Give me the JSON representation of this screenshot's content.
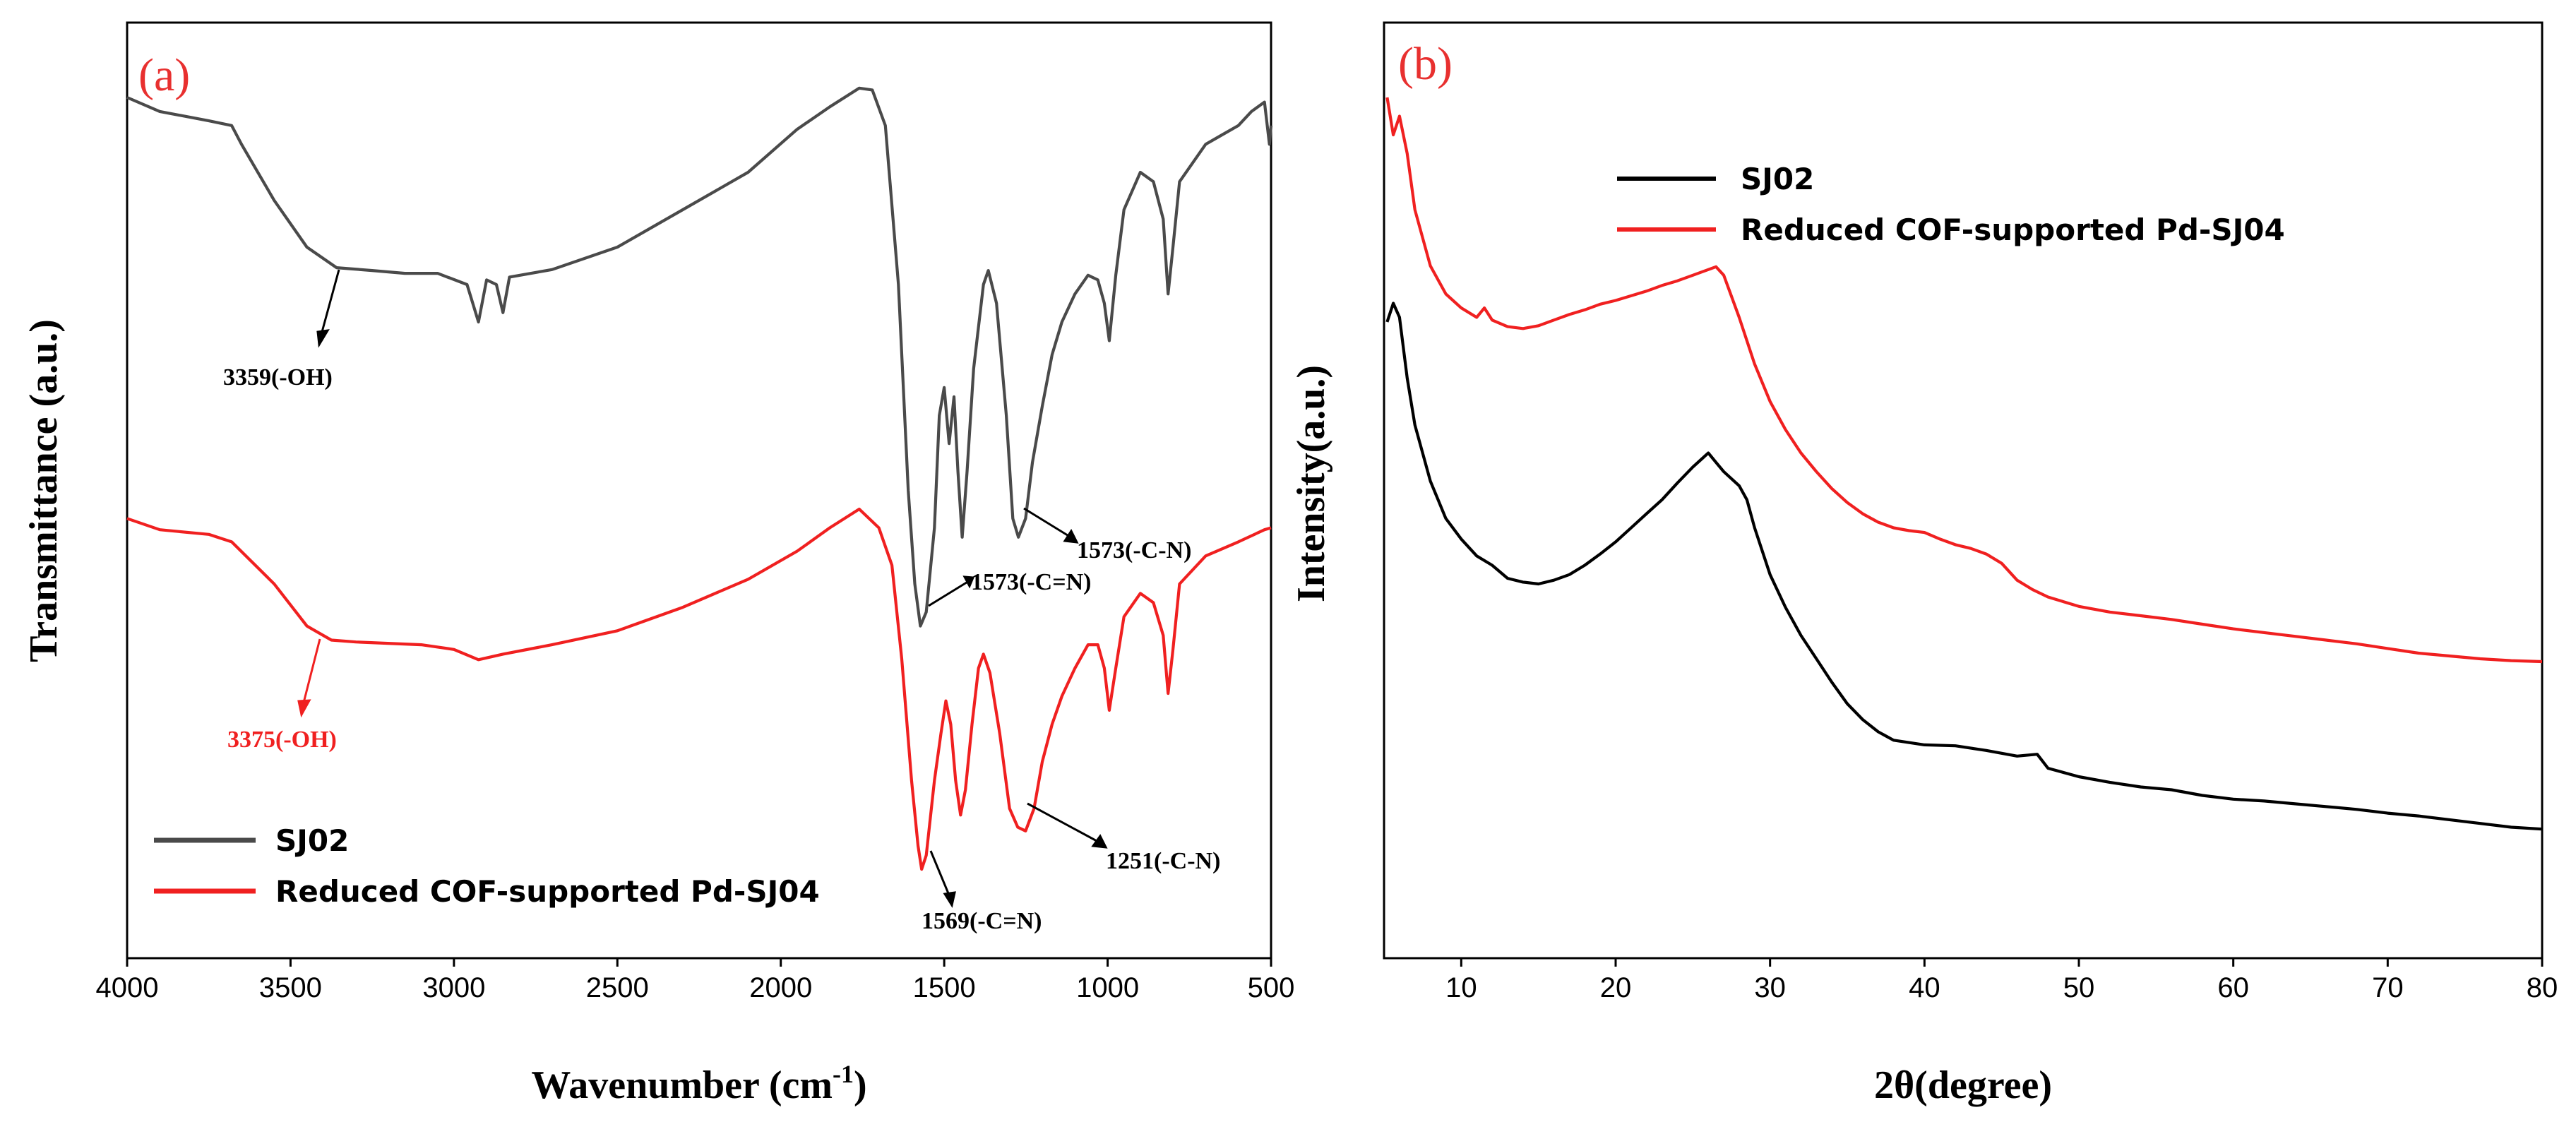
{
  "colors": {
    "sj02_a": "#4a4a4a",
    "sj04": "#f02020",
    "sj02_b": "#000000",
    "panel_tag": "#e8302f"
  },
  "chart_data": [
    {
      "type": "line",
      "panel": "(a)",
      "xlabel": "Wavenumber (cm",
      "xlabel_sup": "-1",
      "xlabel_end": ")",
      "ylabel": "Transmittance (a.u.)",
      "xlim": [
        4000,
        500
      ],
      "xticks": [
        "4000",
        "3500",
        "3000",
        "2500",
        "2000",
        "1500",
        "1000",
        "500"
      ],
      "tick_values": [
        4000,
        3500,
        3000,
        2500,
        2000,
        1500,
        1000,
        500
      ],
      "legend": [
        {
          "name": "SJ02",
          "color": "#4a4a4a"
        },
        {
          "name": "Reduced COF-supported Pd-SJ04",
          "color": "#f02020"
        }
      ],
      "series": [
        {
          "name": "SJ02",
          "color": "#4a4a4a",
          "points": [
            [
              4000,
              92
            ],
            [
              3900,
              90.5
            ],
            [
              3750,
              89.5
            ],
            [
              3680,
              89
            ],
            [
              3650,
              87
            ],
            [
              3550,
              81
            ],
            [
              3450,
              76
            ],
            [
              3359,
              73.8
            ],
            [
              3250,
              73.5
            ],
            [
              3150,
              73.2
            ],
            [
              3050,
              73.2
            ],
            [
              2960,
              72
            ],
            [
              2925,
              68
            ],
            [
              2900,
              72.5
            ],
            [
              2870,
              72
            ],
            [
              2850,
              69
            ],
            [
              2830,
              72.8
            ],
            [
              2700,
              73.6
            ],
            [
              2500,
              76
            ],
            [
              2300,
              80
            ],
            [
              2100,
              84
            ],
            [
              1950,
              88.6
            ],
            [
              1850,
              91
            ],
            [
              1760,
              93
            ],
            [
              1720,
              92.8
            ],
            [
              1680,
              89
            ],
            [
              1640,
              72
            ],
            [
              1610,
              50
            ],
            [
              1590,
              40
            ],
            [
              1573,
              35.5
            ],
            [
              1555,
              37
            ],
            [
              1530,
              46
            ],
            [
              1515,
              58
            ],
            [
              1500,
              61
            ],
            [
              1485,
              55
            ],
            [
              1470,
              60
            ],
            [
              1458,
              52
            ],
            [
              1445,
              45
            ],
            [
              1430,
              52
            ],
            [
              1410,
              63
            ],
            [
              1380,
              72
            ],
            [
              1365,
              73.5
            ],
            [
              1340,
              70
            ],
            [
              1310,
              58
            ],
            [
              1290,
              47
            ],
            [
              1273,
              45
            ],
            [
              1251,
              47
            ],
            [
              1230,
              53
            ],
            [
              1200,
              59
            ],
            [
              1170,
              64.5
            ],
            [
              1140,
              68
            ],
            [
              1100,
              71
            ],
            [
              1060,
              73
            ],
            [
              1030,
              72.5
            ],
            [
              1010,
              70
            ],
            [
              995,
              66
            ],
            [
              975,
              73
            ],
            [
              950,
              80
            ],
            [
              900,
              84
            ],
            [
              860,
              83
            ],
            [
              830,
              79
            ],
            [
              815,
              71
            ],
            [
              800,
              76
            ],
            [
              780,
              83
            ],
            [
              700,
              87
            ],
            [
              650,
              88
            ],
            [
              600,
              89
            ],
            [
              560,
              90.5
            ],
            [
              520,
              91.5
            ],
            [
              505,
              87
            ],
            [
              500,
              89
            ]
          ]
        },
        {
          "name": "Reduced COF-supported Pd-SJ04",
          "color": "#f02020",
          "points": [
            [
              4000,
              47
            ],
            [
              3900,
              45.8
            ],
            [
              3750,
              45.3
            ],
            [
              3680,
              44.5
            ],
            [
              3550,
              40
            ],
            [
              3450,
              35.5
            ],
            [
              3375,
              34
            ],
            [
              3300,
              33.8
            ],
            [
              3100,
              33.5
            ],
            [
              3000,
              33
            ],
            [
              2925,
              31.9
            ],
            [
              2850,
              32.5
            ],
            [
              2700,
              33.5
            ],
            [
              2500,
              35
            ],
            [
              2300,
              37.5
            ],
            [
              2100,
              40.5
            ],
            [
              1950,
              43.5
            ],
            [
              1850,
              46
            ],
            [
              1760,
              48
            ],
            [
              1700,
              46
            ],
            [
              1660,
              42
            ],
            [
              1630,
              32
            ],
            [
              1600,
              19
            ],
            [
              1580,
              12
            ],
            [
              1569,
              9.5
            ],
            [
              1555,
              11
            ],
            [
              1530,
              19
            ],
            [
              1510,
              24
            ],
            [
              1495,
              27.5
            ],
            [
              1480,
              25
            ],
            [
              1465,
              19
            ],
            [
              1450,
              15.3
            ],
            [
              1435,
              18
            ],
            [
              1415,
              25
            ],
            [
              1395,
              31
            ],
            [
              1380,
              32.5
            ],
            [
              1360,
              30.5
            ],
            [
              1330,
              24
            ],
            [
              1300,
              16
            ],
            [
              1275,
              14
            ],
            [
              1251,
              13.6
            ],
            [
              1225,
              16
            ],
            [
              1200,
              21
            ],
            [
              1170,
              25
            ],
            [
              1140,
              28
            ],
            [
              1100,
              31
            ],
            [
              1060,
              33.5
            ],
            [
              1030,
              33.5
            ],
            [
              1010,
              31
            ],
            [
              995,
              26.5
            ],
            [
              975,
              31
            ],
            [
              950,
              36.5
            ],
            [
              900,
              39
            ],
            [
              860,
              38
            ],
            [
              830,
              34.5
            ],
            [
              815,
              28.3
            ],
            [
              800,
              33
            ],
            [
              780,
              40
            ],
            [
              700,
              43
            ],
            [
              600,
              44.5
            ],
            [
              520,
              45.8
            ],
            [
              500,
              46
            ]
          ]
        }
      ],
      "annotations": [
        {
          "text": "3359(-OH)",
          "color": "#000000"
        },
        {
          "text": "1573(-C-N)",
          "color": "#000000"
        },
        {
          "text": "1573(-C=N)",
          "color": "#000000"
        },
        {
          "text": "3375(-OH)",
          "color": "#f02020"
        },
        {
          "text": "1251(-C-N)",
          "color": "#000000"
        },
        {
          "text": "1569(-C=N)",
          "color": "#000000"
        }
      ]
    },
    {
      "type": "line",
      "panel": "(b)",
      "xlabel": "2θ(degree)",
      "ylabel": "Intensity(a.u.)",
      "xlim": [
        5,
        80
      ],
      "xticks": [
        "10",
        "20",
        "30",
        "40",
        "50",
        "60",
        "70",
        "80"
      ],
      "tick_values": [
        10,
        20,
        30,
        40,
        50,
        60,
        70,
        80
      ],
      "legend": [
        {
          "name": "SJ02",
          "color": "#000000"
        },
        {
          "name": "Reduced COF-supported Pd-SJ04",
          "color": "#f02020"
        }
      ],
      "series": [
        {
          "name": "SJ02",
          "color": "#000000",
          "points": [
            [
              5.2,
              68
            ],
            [
              5.6,
              70
            ],
            [
              6,
              68.5
            ],
            [
              6.5,
              62
            ],
            [
              7,
              57
            ],
            [
              8,
              51
            ],
            [
              9,
              47
            ],
            [
              10,
              44.8
            ],
            [
              11,
              43
            ],
            [
              12,
              42
            ],
            [
              13,
              40.6
            ],
            [
              14,
              40.2
            ],
            [
              15,
              40
            ],
            [
              16,
              40.4
            ],
            [
              17,
              41
            ],
            [
              18,
              42
            ],
            [
              19,
              43.2
            ],
            [
              20,
              44.5
            ],
            [
              21,
              46
            ],
            [
              22,
              47.5
            ],
            [
              23,
              49
            ],
            [
              24,
              50.8
            ],
            [
              25,
              52.5
            ],
            [
              26,
              54
            ],
            [
              26.5,
              53
            ],
            [
              27,
              52
            ],
            [
              28,
              50.5
            ],
            [
              28.5,
              49
            ],
            [
              29,
              46
            ],
            [
              30,
              41
            ],
            [
              31,
              37.5
            ],
            [
              32,
              34.5
            ],
            [
              33,
              32
            ],
            [
              34,
              29.5
            ],
            [
              35,
              27.2
            ],
            [
              36,
              25.5
            ],
            [
              37,
              24.2
            ],
            [
              38,
              23.3
            ],
            [
              40,
              22.8
            ],
            [
              42,
              22.7
            ],
            [
              44,
              22.2
            ],
            [
              46,
              21.6
            ],
            [
              47.3,
              21.8
            ],
            [
              48,
              20.3
            ],
            [
              50,
              19.4
            ],
            [
              52,
              18.8
            ],
            [
              54,
              18.3
            ],
            [
              56,
              18
            ],
            [
              58,
              17.4
            ],
            [
              60,
              17
            ],
            [
              62,
              16.8
            ],
            [
              64,
              16.5
            ],
            [
              66,
              16.2
            ],
            [
              68,
              15.9
            ],
            [
              70,
              15.5
            ],
            [
              72,
              15.2
            ],
            [
              74,
              14.8
            ],
            [
              76,
              14.4
            ],
            [
              78,
              14
            ],
            [
              80,
              13.8
            ]
          ]
        },
        {
          "name": "Reduced COF-supported Pd-SJ04",
          "color": "#f02020",
          "points": [
            [
              5.2,
              92
            ],
            [
              5.6,
              88
            ],
            [
              6,
              90
            ],
            [
              6.5,
              86
            ],
            [
              7,
              80
            ],
            [
              8,
              74
            ],
            [
              9,
              71
            ],
            [
              10,
              69.5
            ],
            [
              11,
              68.5
            ],
            [
              11.5,
              69.5
            ],
            [
              12,
              68.2
            ],
            [
              13,
              67.5
            ],
            [
              14,
              67.3
            ],
            [
              15,
              67.6
            ],
            [
              16,
              68.2
            ],
            [
              17,
              68.8
            ],
            [
              18,
              69.3
            ],
            [
              19,
              69.9
            ],
            [
              20,
              70.3
            ],
            [
              21,
              70.8
            ],
            [
              22,
              71.3
            ],
            [
              23,
              71.9
            ],
            [
              24,
              72.4
            ],
            [
              25,
              73
            ],
            [
              26,
              73.6
            ],
            [
              26.5,
              73.9
            ],
            [
              27,
              73
            ],
            [
              28,
              68.5
            ],
            [
              29,
              63.5
            ],
            [
              30,
              59.5
            ],
            [
              31,
              56.5
            ],
            [
              32,
              54
            ],
            [
              33,
              52
            ],
            [
              34,
              50.2
            ],
            [
              35,
              48.7
            ],
            [
              36,
              47.5
            ],
            [
              37,
              46.6
            ],
            [
              38,
              46
            ],
            [
              39,
              45.7
            ],
            [
              40,
              45.5
            ],
            [
              41,
              44.8
            ],
            [
              42,
              44.2
            ],
            [
              43,
              43.8
            ],
            [
              44,
              43.2
            ],
            [
              45,
              42.2
            ],
            [
              46,
              40.4
            ],
            [
              47,
              39.4
            ],
            [
              48,
              38.6
            ],
            [
              50,
              37.6
            ],
            [
              52,
              37
            ],
            [
              54,
              36.6
            ],
            [
              56,
              36.2
            ],
            [
              58,
              35.7
            ],
            [
              60,
              35.2
            ],
            [
              62,
              34.8
            ],
            [
              64,
              34.4
            ],
            [
              66,
              34
            ],
            [
              68,
              33.6
            ],
            [
              70,
              33.1
            ],
            [
              72,
              32.6
            ],
            [
              74,
              32.3
            ],
            [
              76,
              32
            ],
            [
              78,
              31.8
            ],
            [
              80,
              31.7
            ]
          ]
        }
      ]
    }
  ]
}
